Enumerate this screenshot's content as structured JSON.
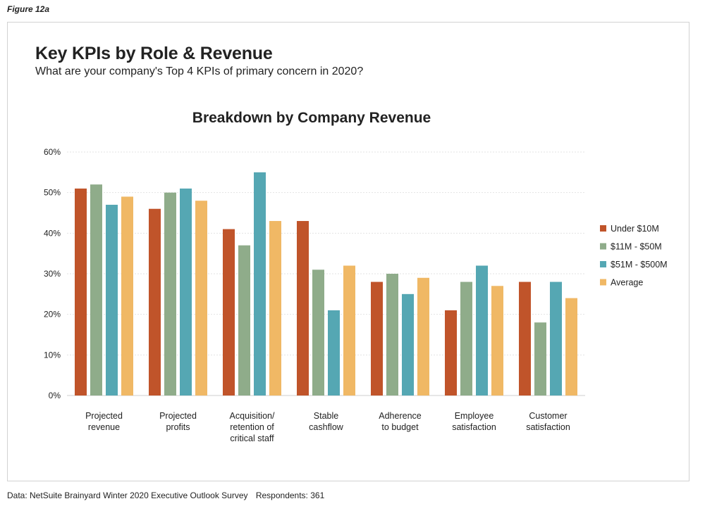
{
  "figure_label": "Figure 12a",
  "title": "Key KPIs by Role & Revenue",
  "subtitle": "What are your company's Top 4 KPIs of primary concern in 2020?",
  "footer": {
    "source": "Data: NetSuite Brainyard Winter 2020 Executive Outlook Survey",
    "respondents": "Respondents: 361"
  },
  "chart_data": {
    "type": "bar",
    "title": "Breakdown by Company Revenue",
    "xlabel": "",
    "ylabel": "",
    "ylim": [
      0,
      60
    ],
    "yticks": [
      0,
      10,
      20,
      30,
      40,
      50,
      60
    ],
    "ytick_labels": [
      "0%",
      "10%",
      "20%",
      "30%",
      "40%",
      "50%",
      "60%"
    ],
    "grid": true,
    "legend_position": "right",
    "categories": [
      [
        "Projected",
        "revenue"
      ],
      [
        "Projected",
        "profits"
      ],
      [
        "Acquisition/",
        "retention of",
        "critical staff"
      ],
      [
        "Stable",
        "cashflow"
      ],
      [
        "Adherence",
        "to budget"
      ],
      [
        "Employee",
        "satisfaction"
      ],
      [
        "Customer",
        "satisfaction"
      ]
    ],
    "series": [
      {
        "name": "Under $10M",
        "color": "#c0542a",
        "values": [
          51,
          46,
          41,
          43,
          28,
          21,
          28
        ]
      },
      {
        "name": "$11M - $50M",
        "color": "#8fac8a",
        "values": [
          52,
          50,
          37,
          31,
          30,
          28,
          18
        ]
      },
      {
        "name": "$51M - $500M",
        "color": "#55a7b3",
        "values": [
          47,
          51,
          55,
          21,
          25,
          32,
          28
        ]
      },
      {
        "name": "Average",
        "color": "#f0b865",
        "values": [
          49,
          48,
          43,
          32,
          29,
          27,
          24
        ]
      }
    ]
  }
}
